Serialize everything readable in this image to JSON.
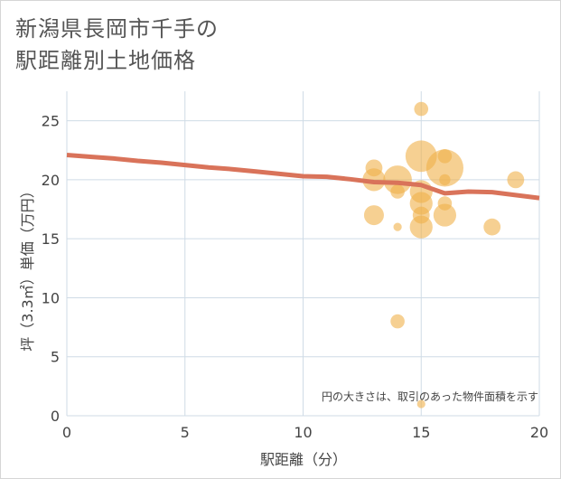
{
  "title": {
    "line1": "新潟県長岡市千手の",
    "line2": "駅距離別土地価格"
  },
  "colors": {
    "bubble": "#f0b04a",
    "trend": "#d9735a",
    "grid": "#cfdbe6",
    "axis": "#444444"
  },
  "chart_data": {
    "type": "scatter",
    "title": "新潟県長岡市千手の駅距離別土地価格",
    "xlabel": "駅距離（分）",
    "ylabel": "坪（3.3㎡）単価（万円）",
    "xlim": [
      0,
      20
    ],
    "ylim": [
      0,
      27.5
    ],
    "xticks": [
      0,
      5,
      10,
      15,
      20
    ],
    "yticks": [
      0,
      5,
      10,
      15,
      20,
      25
    ],
    "grid": true,
    "annotation": "円の大きさは、取引のあった物件面積を示す",
    "bubbles": [
      {
        "x": 15,
        "y": 26,
        "size": 3
      },
      {
        "x": 15,
        "y": 22,
        "size": 9
      },
      {
        "x": 16,
        "y": 22,
        "size": 3
      },
      {
        "x": 16,
        "y": 21,
        "size": 11
      },
      {
        "x": 13,
        "y": 21,
        "size": 4
      },
      {
        "x": 13,
        "y": 20,
        "size": 6
      },
      {
        "x": 14,
        "y": 20,
        "size": 8
      },
      {
        "x": 19,
        "y": 20,
        "size": 4
      },
      {
        "x": 16,
        "y": 20,
        "size": 2
      },
      {
        "x": 14,
        "y": 19,
        "size": 3
      },
      {
        "x": 15,
        "y": 19,
        "size": 6
      },
      {
        "x": 15,
        "y": 18,
        "size": 6
      },
      {
        "x": 16,
        "y": 18,
        "size": 3
      },
      {
        "x": 13,
        "y": 17,
        "size": 5
      },
      {
        "x": 15,
        "y": 17,
        "size": 4
      },
      {
        "x": 16,
        "y": 17,
        "size": 6
      },
      {
        "x": 15,
        "y": 16,
        "size": 6
      },
      {
        "x": 18,
        "y": 16,
        "size": 4
      },
      {
        "x": 14,
        "y": 16,
        "size": 1
      },
      {
        "x": 14,
        "y": 8,
        "size": 3
      },
      {
        "x": 15,
        "y": 1,
        "size": 1
      }
    ],
    "trend": {
      "x": [
        0,
        1,
        2,
        3,
        4,
        5,
        6,
        7,
        8,
        9,
        10,
        11,
        12,
        13,
        14,
        15,
        16,
        17,
        18,
        19,
        20
      ],
      "y": [
        22.1,
        21.95,
        21.8,
        21.6,
        21.45,
        21.25,
        21.05,
        20.9,
        20.7,
        20.5,
        20.3,
        20.25,
        20.05,
        19.8,
        19.75,
        19.55,
        18.85,
        19.0,
        18.95,
        18.7,
        18.45
      ]
    }
  }
}
